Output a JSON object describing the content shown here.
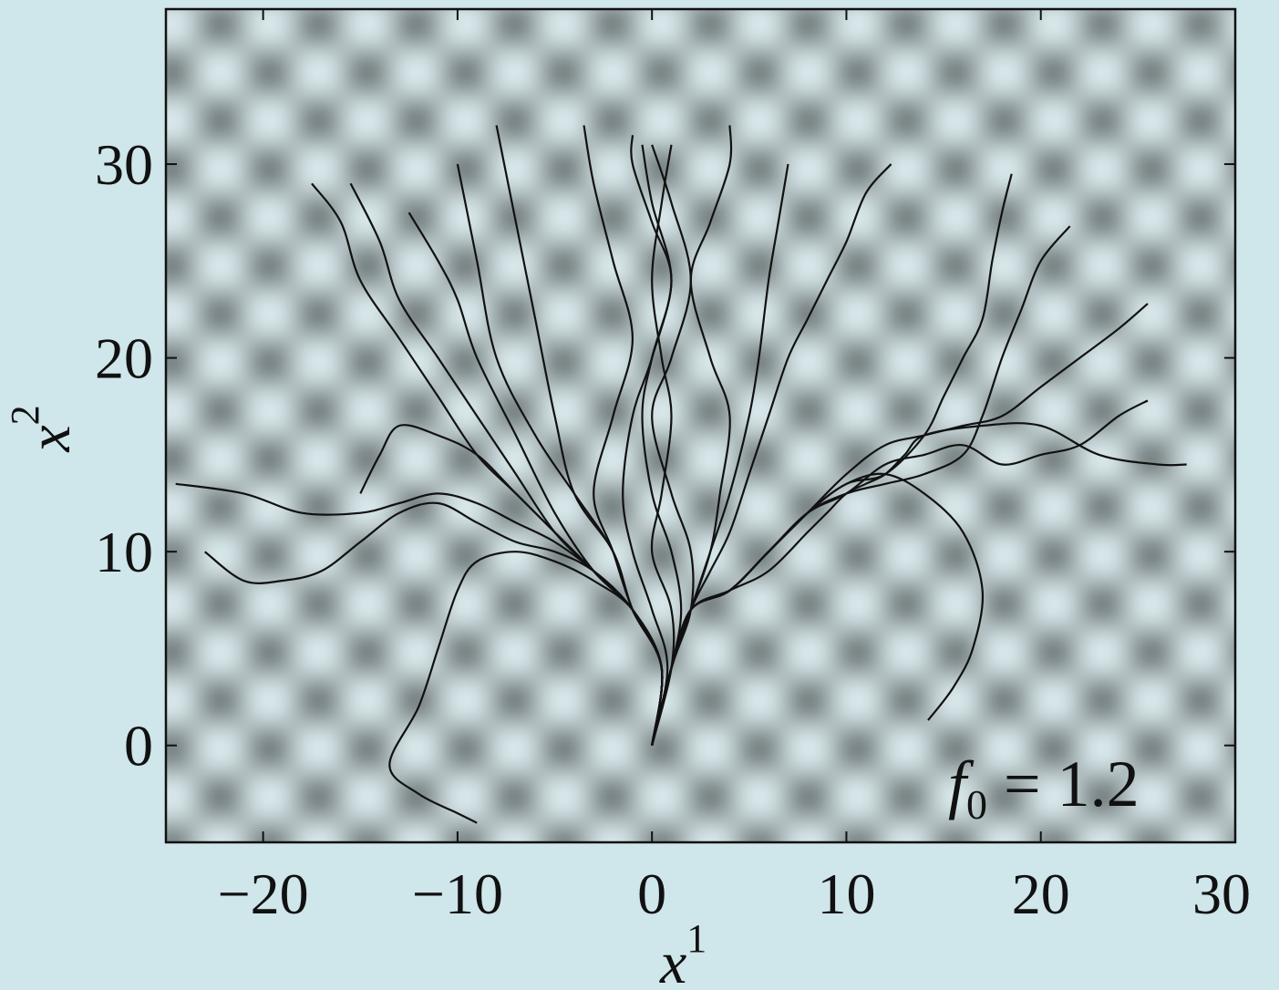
{
  "chart_data": {
    "type": "line",
    "title": "",
    "xlabel": "x",
    "xlabel_sup": "1",
    "ylabel": "x",
    "ylabel_sup": "2",
    "xlim": [
      -25,
      30
    ],
    "ylim": [
      -5,
      38
    ],
    "xticks": [
      -20,
      -10,
      0,
      10,
      20,
      30
    ],
    "yticks": [
      0,
      10,
      20,
      30
    ],
    "xtick_labels": [
      "−20",
      "−10",
      "0",
      "10",
      "20",
      "30"
    ],
    "ytick_labels": [
      "0",
      "10",
      "20",
      "30"
    ],
    "grid": false,
    "legend": "none",
    "annotation": {
      "symbol": "f",
      "subscript": "0",
      "text": " = 1.2",
      "placement": "bottom-right"
    },
    "background": {
      "type": "periodic-potential",
      "description_colors": {
        "light": "#d9ecef",
        "dark": "#6b7576"
      },
      "period_x": 5,
      "period_y": 5
    },
    "line_color": "#111111",
    "series": [
      {
        "x": [
          0,
          1,
          2,
          4,
          6,
          8,
          9,
          10,
          11,
          12,
          13,
          14,
          17,
          20,
          23,
          26,
          27.5
        ],
        "y": [
          0,
          4,
          7,
          8,
          9,
          11,
          12,
          13,
          13.5,
          14,
          15,
          16,
          16.5,
          16.5,
          15,
          14.5,
          14.5
        ]
      },
      {
        "x": [
          0,
          1,
          2,
          4,
          6,
          8,
          10,
          12,
          14,
          16,
          18,
          20,
          22,
          24,
          25.5
        ],
        "y": [
          0,
          4,
          7,
          8,
          10,
          12,
          13,
          14.5,
          15,
          15.5,
          14.5,
          15,
          15.5,
          17,
          17.8
        ]
      },
      {
        "x": [
          0,
          1,
          2,
          4,
          6,
          8,
          10,
          12,
          14,
          16,
          18,
          20,
          22,
          24,
          25.5
        ],
        "y": [
          0,
          4,
          7,
          8,
          10,
          12,
          14,
          15.5,
          16,
          16.5,
          17,
          18.5,
          20,
          21.5,
          22.8
        ]
      },
      {
        "x": [
          0,
          1,
          2,
          4,
          6,
          8,
          10,
          12,
          14,
          16,
          17,
          18,
          19,
          20,
          21.5
        ],
        "y": [
          0,
          4,
          7,
          8,
          10,
          12,
          13,
          13.5,
          14,
          15,
          17,
          20,
          22.5,
          25,
          26.8
        ]
      },
      {
        "x": [
          0,
          1,
          2,
          4,
          6,
          8,
          10,
          12,
          14,
          15,
          16,
          17,
          17.5,
          18,
          18.5
        ],
        "y": [
          0,
          4,
          7,
          8,
          10,
          12,
          13.5,
          14,
          16,
          18,
          20,
          22,
          25,
          27.5,
          29.5
        ]
      },
      {
        "x": [
          0,
          1,
          2,
          4,
          6,
          8,
          10,
          12,
          14,
          16,
          17,
          16.5,
          15.5,
          14.2
        ],
        "y": [
          0,
          4,
          7,
          8,
          10,
          12,
          13.5,
          14,
          13,
          11,
          8,
          5,
          3,
          1.3
        ]
      },
      {
        "x": [
          0,
          1,
          2,
          3,
          4,
          5,
          6,
          7,
          8,
          9,
          10,
          11,
          12.3
        ],
        "y": [
          0,
          4,
          7,
          9,
          11,
          14,
          17,
          20,
          22,
          24,
          26,
          28.5,
          30
        ]
      },
      {
        "x": [
          0,
          1,
          2,
          3,
          4,
          5,
          5.5,
          6,
          6.5,
          7
        ],
        "y": [
          0,
          4,
          7,
          10,
          13,
          17,
          20,
          24,
          27,
          30
        ]
      },
      {
        "x": [
          0,
          1,
          2,
          3,
          3.5,
          4,
          3,
          2,
          3,
          4,
          4
        ],
        "y": [
          0,
          4,
          7,
          10,
          13,
          17,
          20,
          24,
          27,
          30,
          32
        ]
      },
      {
        "x": [
          0,
          1,
          2,
          2,
          1,
          0,
          1,
          2,
          1,
          0
        ],
        "y": [
          0,
          4,
          7,
          10,
          13,
          17,
          20,
          24,
          28,
          31
        ]
      },
      {
        "x": [
          0,
          1,
          1.5,
          1,
          0,
          -0.5,
          0,
          1,
          0,
          -0.5
        ],
        "y": [
          0,
          4,
          7,
          10,
          13,
          17,
          20,
          24,
          28,
          31
        ]
      },
      {
        "x": [
          0,
          1,
          1,
          0,
          0.5,
          1,
          0.5,
          0,
          0.5,
          1
        ],
        "y": [
          0,
          4,
          7,
          10,
          13,
          17,
          20,
          24,
          28,
          31
        ]
      },
      {
        "x": [
          0,
          0.8,
          0,
          -1,
          -1.5,
          -1,
          0,
          1,
          0,
          -1,
          -1
        ],
        "y": [
          0,
          4,
          7,
          10,
          13,
          17,
          20,
          24,
          27,
          30,
          31.5
        ]
      },
      {
        "x": [
          0,
          0.5,
          -1,
          -2,
          -3,
          -2,
          -1,
          -2,
          -3,
          -3.5
        ],
        "y": [
          0,
          4,
          7,
          10,
          13,
          17,
          21,
          25,
          29,
          32
        ]
      },
      {
        "x": [
          0,
          0.5,
          -1,
          -2,
          -4,
          -5,
          -6,
          -7,
          -8
        ],
        "y": [
          0,
          4,
          7,
          10,
          13,
          17,
          22,
          27,
          32
        ]
      },
      {
        "x": [
          0,
          0.5,
          -1,
          -2,
          -4,
          -6,
          -8,
          -9,
          -10
        ],
        "y": [
          0,
          4,
          7,
          10,
          13,
          16,
          20,
          25,
          30
        ]
      },
      {
        "x": [
          0,
          0.5,
          -1,
          -3,
          -5,
          -7,
          -9,
          -10,
          -11,
          -12.5
        ],
        "y": [
          0,
          4,
          7,
          9,
          12,
          16,
          20,
          23,
          25,
          27.5
        ]
      },
      {
        "x": [
          0,
          0.5,
          -1,
          -3,
          -5,
          -7,
          -9,
          -11,
          -13,
          -14,
          -15.5
        ],
        "y": [
          0,
          4,
          7,
          9,
          11,
          14,
          17,
          20,
          23,
          26,
          29
        ]
      },
      {
        "x": [
          0,
          0.5,
          -1,
          -3,
          -5,
          -7,
          -9,
          -11,
          -13,
          -15,
          -16,
          -17.5
        ],
        "y": [
          0,
          4,
          7,
          9,
          11,
          13,
          15,
          18,
          21,
          24,
          27,
          29
        ]
      },
      {
        "x": [
          0,
          0.5,
          -1,
          -3,
          -5,
          -7,
          -9,
          -11,
          -13,
          -15,
          -18,
          -21,
          -24.5
        ],
        "y": [
          0,
          4,
          7,
          9,
          10.5,
          11.5,
          12.5,
          13,
          12.5,
          12,
          12,
          13,
          13.5
        ]
      },
      {
        "x": [
          0,
          0.5,
          -1,
          -3,
          -5,
          -7,
          -9,
          -11,
          -13,
          -15,
          -17,
          -19,
          -21,
          -23
        ],
        "y": [
          0,
          4,
          7,
          9,
          10,
          10.5,
          11.5,
          12.5,
          12,
          10.5,
          9,
          8.5,
          8.5,
          10
        ]
      },
      {
        "x": [
          0,
          0.5,
          -1,
          -3,
          -5,
          -7,
          -9,
          -10,
          -11,
          -12,
          -13.5,
          -12,
          -10,
          -9
        ],
        "y": [
          0,
          4,
          7,
          8.5,
          9.5,
          10,
          9.5,
          8,
          5,
          2,
          -1,
          -2.5,
          -3.5,
          -4
        ]
      },
      {
        "x": [
          0,
          0.5,
          -1,
          -3,
          -5,
          -7,
          -9,
          -11,
          -13,
          -14,
          -15
        ],
        "y": [
          0,
          4,
          7,
          9,
          11,
          13,
          15,
          16,
          16.5,
          15,
          13
        ]
      }
    ]
  }
}
